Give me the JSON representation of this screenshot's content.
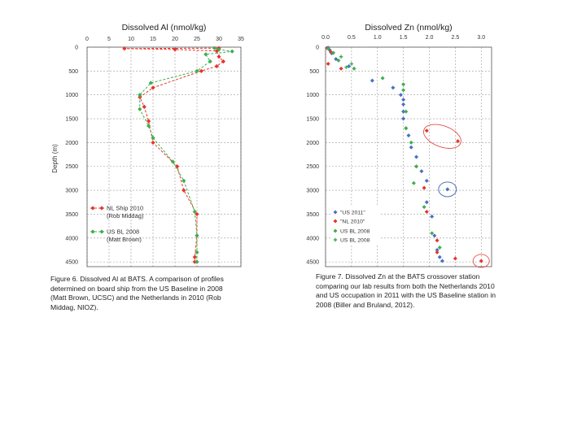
{
  "captions": {
    "al": [
      "Figure 6.  Dissolved Al at BATS. A comparison of profiles",
      "determined on board ship from the US Baseline in 2008",
      "(Matt Brown, UCSC) and the Netherlands in 2010 (Rob",
      "Middag, NIOZ)."
    ],
    "zn": [
      "Figure 7. Dissolved Zn at the BATS crossover station",
      "comparing our lab results from both the Netherlands 2010",
      "and US occupation in 2011 with the US Baseline station in",
      "2008 (Biller and Bruland, 2012)."
    ]
  },
  "colors": {
    "red": "#e8332a",
    "green": "#3fae4e",
    "blue": "#4a6fc4",
    "highlight_red": "#e3504a",
    "highlight_blue": "#3b67b8",
    "grid": "#9a9a9a",
    "axis": "#555555"
  },
  "chart_data": [
    {
      "type": "line",
      "title": "Dissolved Al (nmol/kg)",
      "ylabel": "Depth (m)",
      "xlim": [
        0,
        35
      ],
      "ylim": [
        4600,
        0
      ],
      "x_ticks": [
        "0",
        "5",
        "10",
        "15",
        "20",
        "25",
        "30",
        "35"
      ],
      "y_ticks": [
        "0",
        "500",
        "1000",
        "1500",
        "2000",
        "2500",
        "3000",
        "3500",
        "4000",
        "4500"
      ],
      "y_inverted": true,
      "grid": "dashed",
      "series": [
        {
          "name": "NL Ship 2010 (Rob Middag)",
          "color": "#e8332a",
          "points": [
            [
              30,
              20
            ],
            [
              8.5,
              30
            ],
            [
              20,
              50
            ],
            [
              29.5,
              80
            ],
            [
              30,
              200
            ],
            [
              31,
              300
            ],
            [
              29.5,
              400
            ],
            [
              26,
              500
            ],
            [
              15,
              850
            ],
            [
              12,
              1050
            ],
            [
              13,
              1250
            ],
            [
              14,
              1550
            ],
            [
              15,
              2000
            ],
            [
              20.5,
              2500
            ],
            [
              22,
              3000
            ],
            [
              25,
              3500
            ],
            [
              25,
              3950
            ],
            [
              24.5,
              4400
            ],
            [
              24.5,
              4500
            ]
          ]
        },
        {
          "name": "US BL 2008 (Matt Brown)",
          "color": "#3fae4e",
          "points": [
            [
              29,
              20
            ],
            [
              30,
              50
            ],
            [
              33,
              90
            ],
            [
              27,
              150
            ],
            [
              28,
              300
            ],
            [
              25,
              500
            ],
            [
              14.5,
              750
            ],
            [
              12,
              1000
            ],
            [
              12,
              1300
            ],
            [
              14,
              1650
            ],
            [
              15,
              1900
            ],
            [
              19.5,
              2400
            ],
            [
              22,
              2800
            ],
            [
              24.5,
              3450
            ],
            [
              25,
              3950
            ],
            [
              25,
              4300
            ],
            [
              25,
              4500
            ]
          ]
        }
      ],
      "legend": "lower-left"
    },
    {
      "type": "scatter",
      "title": "Dissolved Zn (nmol/kg)",
      "xlim": [
        0,
        3.2
      ],
      "ylim": [
        4600,
        0
      ],
      "x_ticks": [
        "0.0",
        "0.5",
        "1.0",
        "1.5",
        "2.0",
        "2.5",
        "3.0"
      ],
      "y_ticks": [
        "0",
        "500",
        "1000",
        "1500",
        "2000",
        "2500",
        "3000",
        "3500",
        "4000",
        "4500"
      ],
      "y_inverted": true,
      "grid": "dashed",
      "legend": "lower-left",
      "series": [
        {
          "name": "\"US 2011\"",
          "color": "#4a6fc4",
          "points": [
            [
              0.05,
              10
            ],
            [
              0.08,
              60
            ],
            [
              0.12,
              130
            ],
            [
              0.2,
              250
            ],
            [
              0.45,
              400
            ],
            [
              0.9,
              700
            ],
            [
              1.3,
              850
            ],
            [
              1.45,
              1000
            ],
            [
              1.5,
              1100
            ],
            [
              1.5,
              1200
            ],
            [
              1.5,
              1350
            ],
            [
              1.5,
              1500
            ],
            [
              1.55,
              1700
            ],
            [
              1.6,
              1850
            ],
            [
              1.65,
              2100
            ],
            [
              1.75,
              2300
            ],
            [
              1.85,
              2600
            ],
            [
              1.95,
              2800
            ],
            [
              2.35,
              2980
            ],
            [
              1.95,
              3250
            ],
            [
              2.05,
              3550
            ],
            [
              2.1,
              3950
            ],
            [
              2.15,
              4250
            ],
            [
              2.2,
              4400
            ],
            [
              2.25,
              4480
            ]
          ]
        },
        {
          "name": "\"NL 2010\"",
          "color": "#e8332a",
          "points": [
            [
              0.03,
              20
            ],
            [
              0.1,
              100
            ],
            [
              0.05,
              350
            ],
            [
              0.3,
              450
            ],
            [
              1.95,
              1750
            ],
            [
              2.55,
              1970
            ],
            [
              1.75,
              2500
            ],
            [
              1.9,
              2950
            ],
            [
              1.95,
              3450
            ],
            [
              2.15,
              4050
            ],
            [
              2.15,
              4300
            ],
            [
              2.5,
              4430
            ],
            [
              3.0,
              4480
            ]
          ]
        },
        {
          "name": "US BL 2008",
          "color": "#3fae4e",
          "points": [
            [
              0.05,
              30
            ],
            [
              0.15,
              120
            ],
            [
              0.25,
              280
            ],
            [
              0.55,
              450
            ],
            [
              1.1,
              650
            ],
            [
              1.5,
              780
            ],
            [
              1.5,
              900
            ],
            [
              1.55,
              1350
            ],
            [
              1.55,
              1700
            ],
            [
              1.65,
              2000
            ],
            [
              1.75,
              2500
            ],
            [
              1.7,
              2850
            ],
            [
              1.9,
              3350
            ],
            [
              2.05,
              3900
            ],
            [
              2.2,
              4200
            ]
          ]
        },
        {
          "name": "US BL 2008",
          "color": "#3fae4e",
          "marker": "cross",
          "points": [
            [
              0.3,
              200
            ],
            [
              0.4,
              420
            ],
            [
              0.5,
              350
            ]
          ]
        }
      ],
      "highlights": [
        {
          "center": [
            2.25,
            1870
          ],
          "color": "#e3504a"
        },
        {
          "center": [
            2.35,
            2980
          ],
          "color": "#3b67b8"
        },
        {
          "center": [
            3.0,
            4480
          ],
          "color": "#e3504a"
        }
      ]
    }
  ]
}
